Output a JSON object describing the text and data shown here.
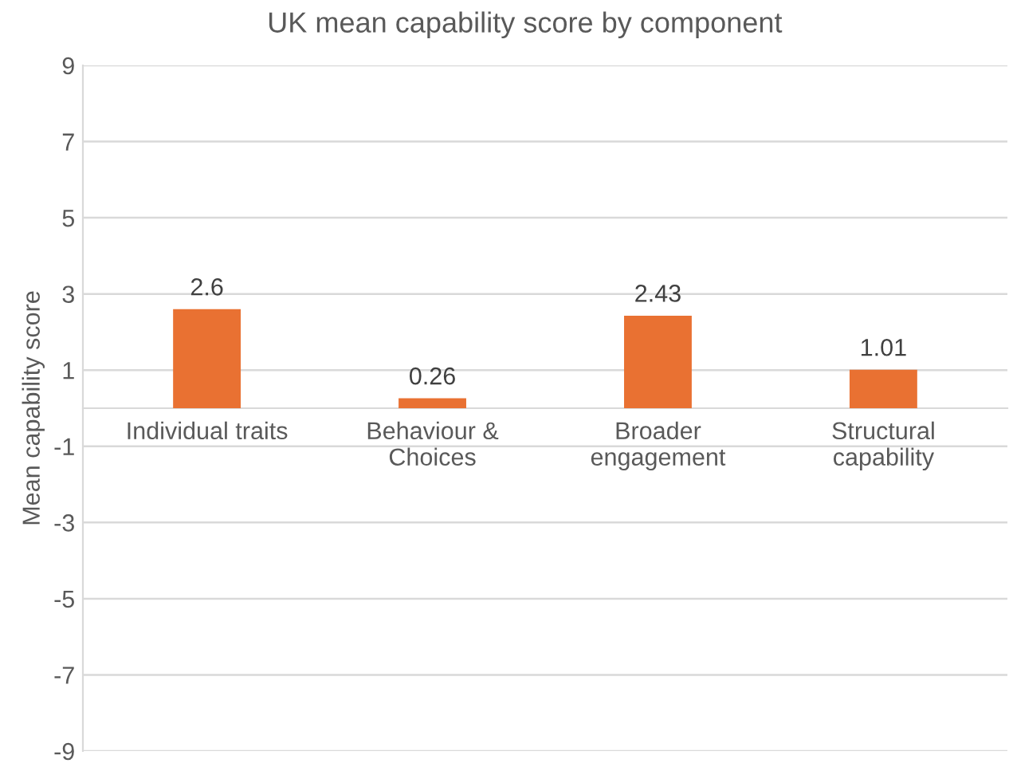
{
  "chart_data": {
    "type": "bar",
    "title": "UK mean capability score by component",
    "ylabel": "Mean capability score",
    "categories": [
      "Individual traits",
      "Behaviour &\nChoices",
      "Broader\nengagement",
      "Structural\ncapability"
    ],
    "values": [
      2.6,
      0.26,
      2.43,
      1.01
    ],
    "color": "#e97132",
    "ylim": [
      -9,
      9
    ],
    "yticks": [
      -9,
      -7,
      -5,
      -3,
      -1,
      1,
      3,
      5,
      7,
      9
    ],
    "grid": "y",
    "data_labels": true,
    "legend": false
  }
}
